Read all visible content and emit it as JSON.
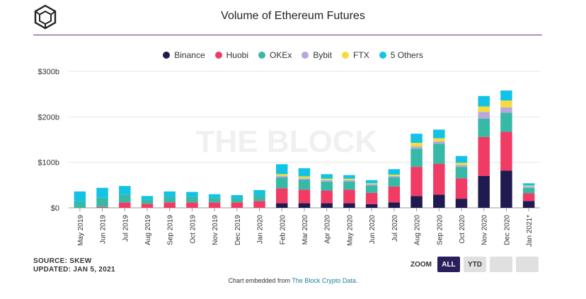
{
  "header": {
    "title": "Volume of Ethereum Futures"
  },
  "legend": [
    {
      "label": "Binance",
      "color": "#1f1a4f"
    },
    {
      "label": "Huobi",
      "color": "#f03c64"
    },
    {
      "label": "OKEx",
      "color": "#36b9a6"
    },
    {
      "label": "Bybit",
      "color": "#b9a6de"
    },
    {
      "label": "FTX",
      "color": "#f5dc3c"
    },
    {
      "label": "5 Others",
      "color": "#13c3e6"
    }
  ],
  "watermark": "THE BLOCK",
  "footer": {
    "source": "SOURCE: SKEW",
    "updated": "UPDATED: JAN 5, 2021",
    "zoom_label": "ZOOM",
    "zoom_all": "ALL",
    "zoom_ytd": "YTD",
    "embed_prefix": "Chart embedded from ",
    "embed_link": "The Block Crypto Data",
    "embed_suffix": "."
  },
  "chart_data": {
    "type": "bar",
    "stacked": true,
    "title": "Volume of Ethereum Futures",
    "xlabel": "",
    "ylabel": "",
    "ylim": [
      0,
      300
    ],
    "y_ticks": [
      0,
      100,
      200,
      300
    ],
    "y_tick_labels": [
      "$0",
      "$100b",
      "$200b",
      "$300b"
    ],
    "grid": true,
    "legend_position": "top-center",
    "categories": [
      "May 2019",
      "Jun 2019",
      "Jul 2019",
      "Aug 2019",
      "Sep 2019",
      "Oct 2019",
      "Nov 2019",
      "Dec 2019",
      "Jan 2020",
      "Feb 2020",
      "Mar 2020",
      "Apr 2020",
      "May 2020",
      "Jun 2020",
      "Jul 2020",
      "Aug 2020",
      "Sep 2020",
      "Oct 2020",
      "Nov 2020",
      "Dec 2020",
      "Jan 2021*"
    ],
    "series": [
      {
        "name": "Binance",
        "color": "#1f1a4f",
        "values": [
          0,
          0,
          0,
          0,
          0,
          0,
          0,
          0,
          0,
          10,
          10,
          10,
          10,
          8,
          12,
          26,
          29,
          20,
          70,
          82,
          15
        ]
      },
      {
        "name": "Huobi",
        "color": "#f03c64",
        "values": [
          0,
          2,
          12,
          9,
          12,
          12,
          12,
          12,
          15,
          33,
          30,
          28,
          30,
          25,
          35,
          64,
          68,
          45,
          86,
          85,
          17
        ]
      },
      {
        "name": "OKEx",
        "color": "#36b9a6",
        "values": [
          15,
          20,
          17,
          9,
          12,
          12,
          10,
          9,
          13,
          24,
          22,
          20,
          18,
          16,
          20,
          40,
          44,
          25,
          40,
          42,
          12
        ]
      },
      {
        "name": "Bybit",
        "color": "#b9a6de",
        "values": [
          0,
          0,
          0,
          0,
          0,
          0,
          0,
          0,
          0,
          3,
          3,
          3,
          3,
          3,
          3,
          5,
          5,
          4,
          15,
          12,
          3
        ]
      },
      {
        "name": "FTX",
        "color": "#f5dc3c",
        "values": [
          0,
          0,
          0,
          0,
          0,
          0,
          0,
          0,
          0,
          4,
          4,
          3,
          3,
          2,
          3,
          8,
          7,
          5,
          12,
          15,
          2
        ]
      },
      {
        "name": "5 Others",
        "color": "#13c3e6",
        "values": [
          21,
          22,
          19,
          8,
          12,
          11,
          8,
          7,
          11,
          22,
          18,
          10,
          8,
          7,
          12,
          20,
          19,
          15,
          23,
          22,
          5
        ]
      }
    ]
  }
}
